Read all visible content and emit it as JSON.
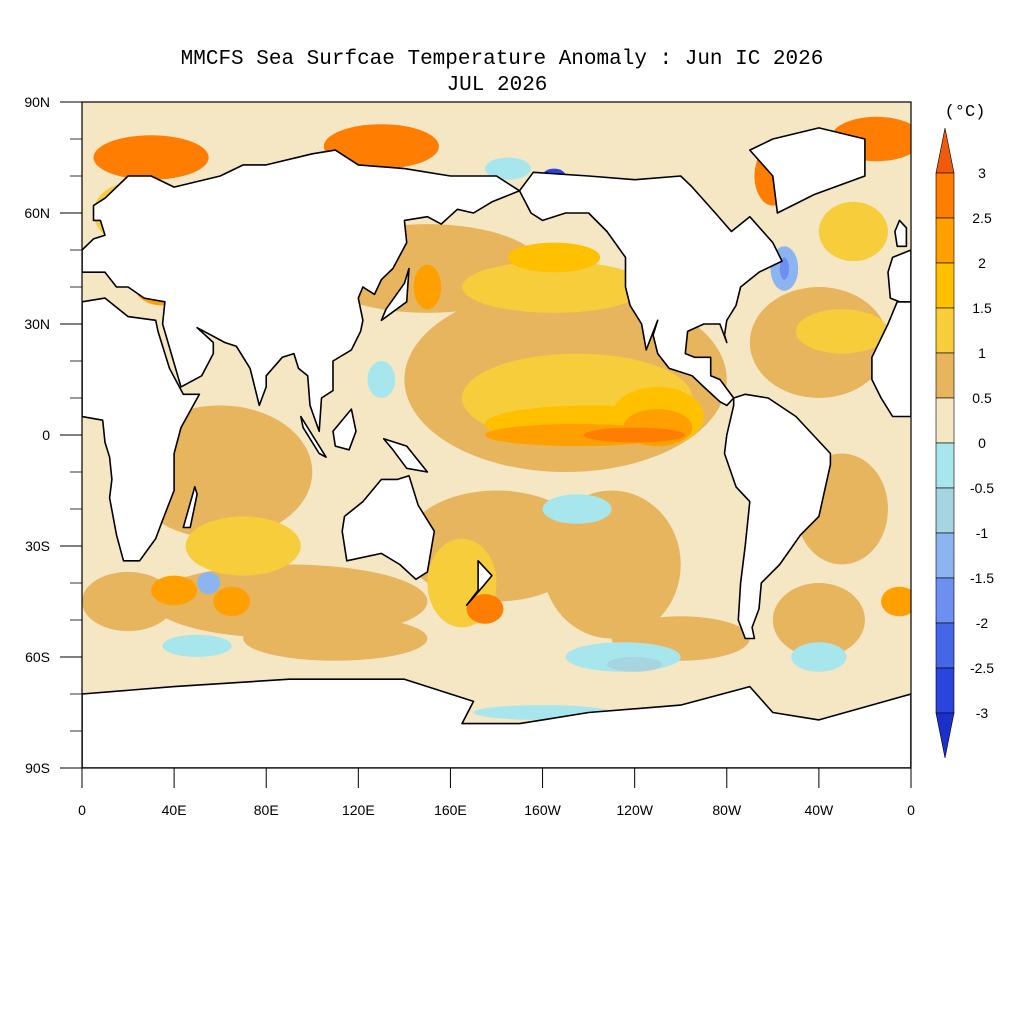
{
  "title": "MMCFS Sea Surfcae Temperature Anomaly : Jun IC 2026",
  "subtitle": "JUL 2026",
  "map": {
    "x_labels": [
      "0",
      "40E",
      "80E",
      "120E",
      "160E",
      "160W",
      "120W",
      "80W",
      "40W",
      "0"
    ],
    "y_labels": [
      "90N",
      "60N",
      "30N",
      "0",
      "30S",
      "60S",
      "90S"
    ]
  },
  "colorbar": {
    "unit": "(°C)",
    "levels": [
      3,
      2.5,
      2,
      1.5,
      1,
      0.5,
      0,
      -0.5,
      -1,
      -1.5,
      -2,
      -2.5,
      -3
    ],
    "colors": [
      "#f05a0a",
      "#ff7d00",
      "#ffa000",
      "#ffc000",
      "#f7cd3c",
      "#e6b55e",
      "#f5e6c4",
      "#a8e6ee",
      "#a6d4e0",
      "#8cb4f0",
      "#6d8ff0",
      "#4666e8",
      "#2a45dc",
      "#1a2fcc"
    ]
  }
}
